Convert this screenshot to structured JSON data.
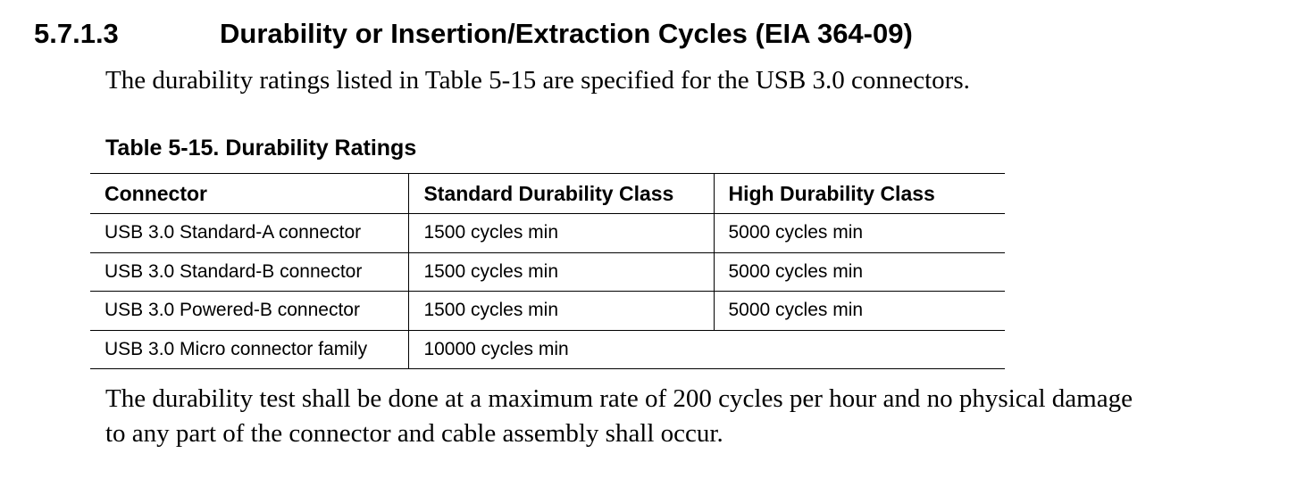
{
  "section": {
    "number": "5.7.1.3",
    "title": "Durability or Insertion/Extraction Cycles (EIA 364-09)"
  },
  "intro": "The durability ratings listed in Table 5-15 are specified for the USB 3.0 connectors.",
  "table": {
    "caption": "Table 5-15. Durability Ratings",
    "headers": [
      "Connector",
      "Standard Durability Class",
      "High Durability Class"
    ],
    "rows": [
      [
        "USB 3.0 Standard-A connector",
        "1500 cycles min",
        "5000 cycles min"
      ],
      [
        "USB 3.0 Standard-B connector",
        "1500 cycles min",
        "5000 cycles min"
      ],
      [
        "USB 3.0 Powered-B connector",
        "1500 cycles min",
        "5000 cycles min"
      ],
      [
        "USB 3.0 Micro connector family",
        "10000 cycles min",
        ""
      ]
    ]
  },
  "closing": {
    "line1": "The durability test shall be done at a maximum rate of 200 cycles per hour and no physical damage",
    "line2": "to any part of the connector and cable assembly shall occur."
  }
}
